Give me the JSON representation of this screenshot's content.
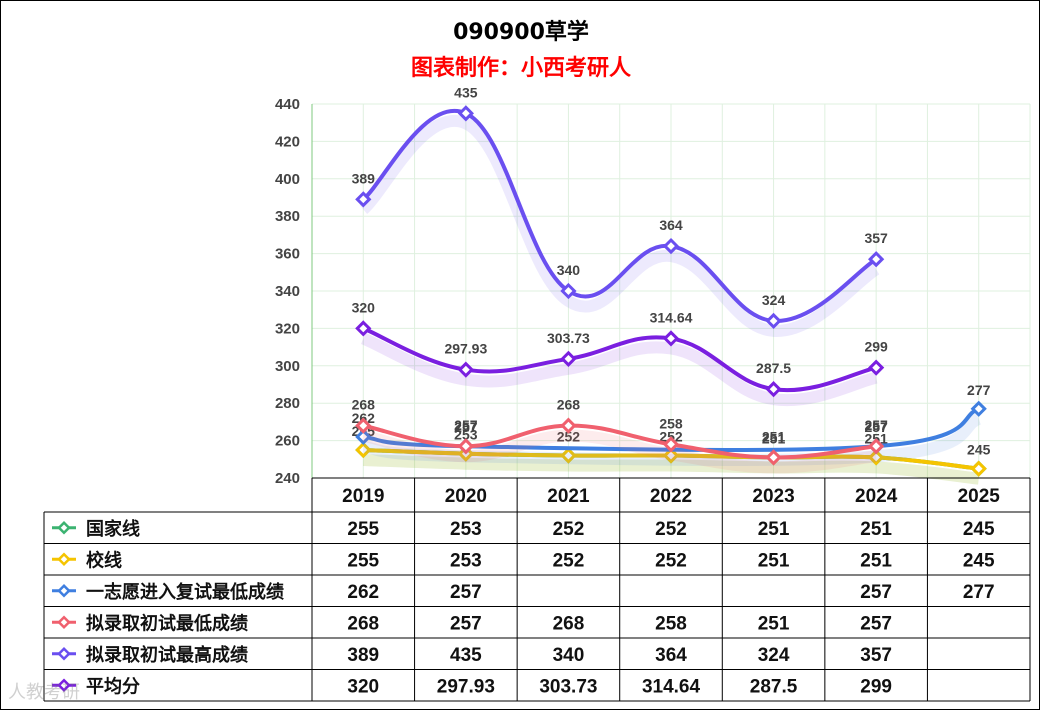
{
  "title": "090900草学",
  "subtitle": "图表制作：小西考研人",
  "watermark": "人教考研",
  "chart_data": {
    "type": "line",
    "categories": [
      "2019",
      "2020",
      "2021",
      "2022",
      "2023",
      "2024",
      "2025"
    ],
    "ylim": [
      240,
      440
    ],
    "yticks": [
      240,
      260,
      280,
      300,
      320,
      340,
      360,
      380,
      400,
      420,
      440
    ],
    "grid": true,
    "legend": "table-left",
    "series": [
      {
        "name": "国家线",
        "color": "#3cb371",
        "values": [
          255,
          253,
          252,
          252,
          251,
          251,
          245
        ],
        "labels": [
          "255",
          "253",
          "252",
          "252",
          "251",
          "251",
          "245"
        ]
      },
      {
        "name": "校线",
        "color": "#f5c400",
        "values": [
          255,
          253,
          252,
          252,
          251,
          251,
          245
        ],
        "labels": [
          "255",
          "253",
          "252",
          "252",
          "251",
          "251",
          "245"
        ]
      },
      {
        "name": "一志愿进入复试最低成绩",
        "color": "#3f7fe0",
        "values": [
          262,
          257,
          null,
          null,
          null,
          257,
          277
        ],
        "labels": [
          "262",
          "257",
          "",
          "",
          "",
          "257",
          "277"
        ]
      },
      {
        "name": "拟录取初试最低成绩",
        "color": "#f0606e",
        "values": [
          268,
          257,
          268,
          258,
          251,
          257,
          null
        ],
        "labels": [
          "268",
          "257",
          "268",
          "258",
          "251",
          "257",
          ""
        ]
      },
      {
        "name": "拟录取初试最高成绩",
        "color": "#6a4ff0",
        "values": [
          389,
          435,
          340,
          364,
          324,
          357,
          null
        ],
        "labels": [
          "389",
          "435",
          "340",
          "364",
          "324",
          "357",
          ""
        ]
      },
      {
        "name": "平均分",
        "color": "#7a1fe0",
        "values": [
          320,
          297.93,
          303.73,
          314.64,
          287.5,
          299,
          null
        ],
        "labels": [
          "320",
          "297.93",
          "303.73",
          "314.64",
          "287.5",
          "299",
          ""
        ]
      }
    ]
  }
}
